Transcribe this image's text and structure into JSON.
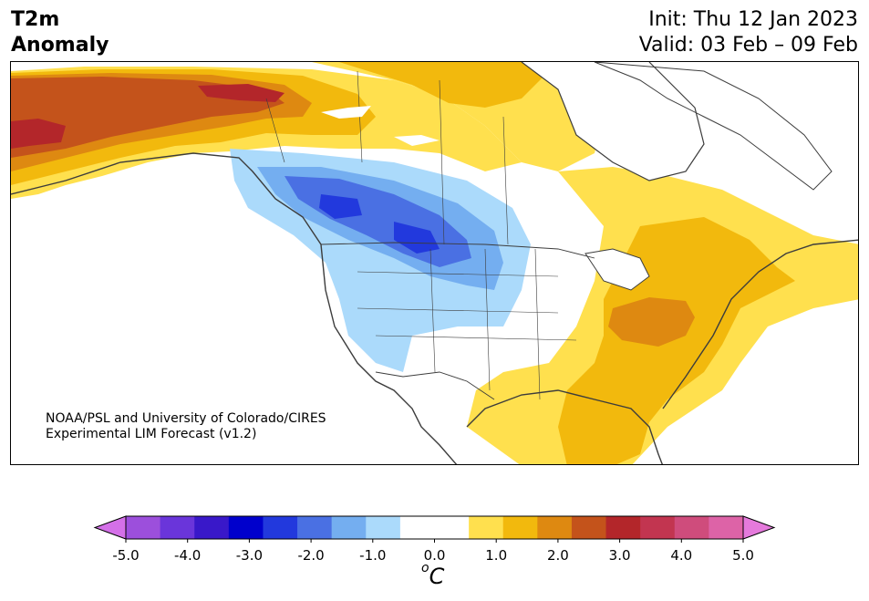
{
  "title": {
    "line1": "T2m",
    "line2": "Anomaly"
  },
  "init_text": "Init: Thu 12 Jan 2023",
  "valid_text": "Valid: 03 Feb – 09 Feb",
  "credit": {
    "line1": "NOAA/PSL and University of Colorado/CIRES",
    "line2": "Experimental LIM Forecast (v1.2)"
  },
  "colorbar": {
    "unit_super": "o",
    "unit_base": "C",
    "colors": [
      "#d470e8",
      "#9c4fdc",
      "#6a35da",
      "#3918c9",
      "#0000cc",
      "#2239dd",
      "#4a70e3",
      "#74aef0",
      "#abdafb",
      "#ffffff",
      "#ffffff",
      "#ffe04e",
      "#f2b90d",
      "#de8911",
      "#c4531b",
      "#b3262a",
      "#c23550",
      "#cf4c7c",
      "#dd63a7",
      "#e57adc"
    ],
    "ticks": [
      "-5.0",
      "-4.0",
      "-3.0",
      "-2.0",
      "-1.0",
      "0.0",
      "1.0",
      "2.0",
      "3.0",
      "4.0",
      "5.0"
    ]
  }
}
